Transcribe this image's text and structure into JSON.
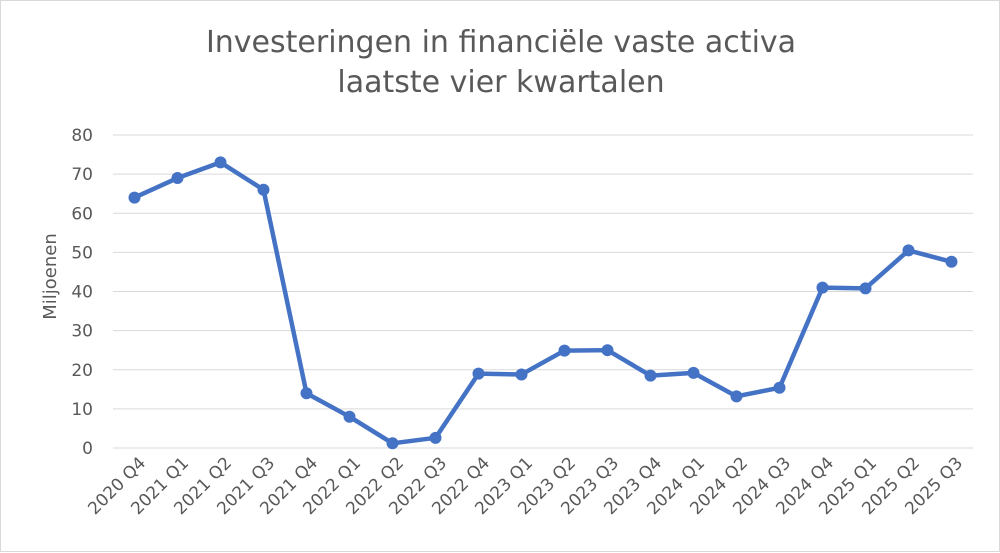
{
  "chart_data": {
    "type": "line",
    "title": "Investeringen in financiële vaste activa laatste vier kwartalen",
    "xlabel": "",
    "ylabel": "Miljoenen",
    "ylim": [
      0,
      80
    ],
    "yticks": [
      0,
      10,
      20,
      30,
      40,
      50,
      60,
      70,
      80
    ],
    "grid": true,
    "legend": "none",
    "colors": {
      "series": "#4472c4",
      "grid": "#d9d9d9",
      "text": "#595959"
    },
    "categories": [
      "2020 Q4",
      "2021 Q1",
      "2021 Q2",
      "2021 Q3",
      "2021 Q4",
      "2022 Q1",
      "2022 Q2",
      "2022 Q3",
      "2022 Q4",
      "2023 Q1",
      "2023 Q2",
      "2023 Q3",
      "2023 Q4",
      "2024 Q1",
      "2024 Q2",
      "2024 Q3",
      "2024 Q4",
      "2025 Q1",
      "2025 Q2",
      "2025 Q3"
    ],
    "series": [
      {
        "values": [
          64,
          69,
          73,
          66,
          14,
          8,
          1.2,
          2.6,
          19,
          18.8,
          24.9,
          25,
          18.5,
          19.2,
          13.2,
          15.4,
          41,
          40.8,
          50.5,
          47.6
        ]
      }
    ]
  }
}
